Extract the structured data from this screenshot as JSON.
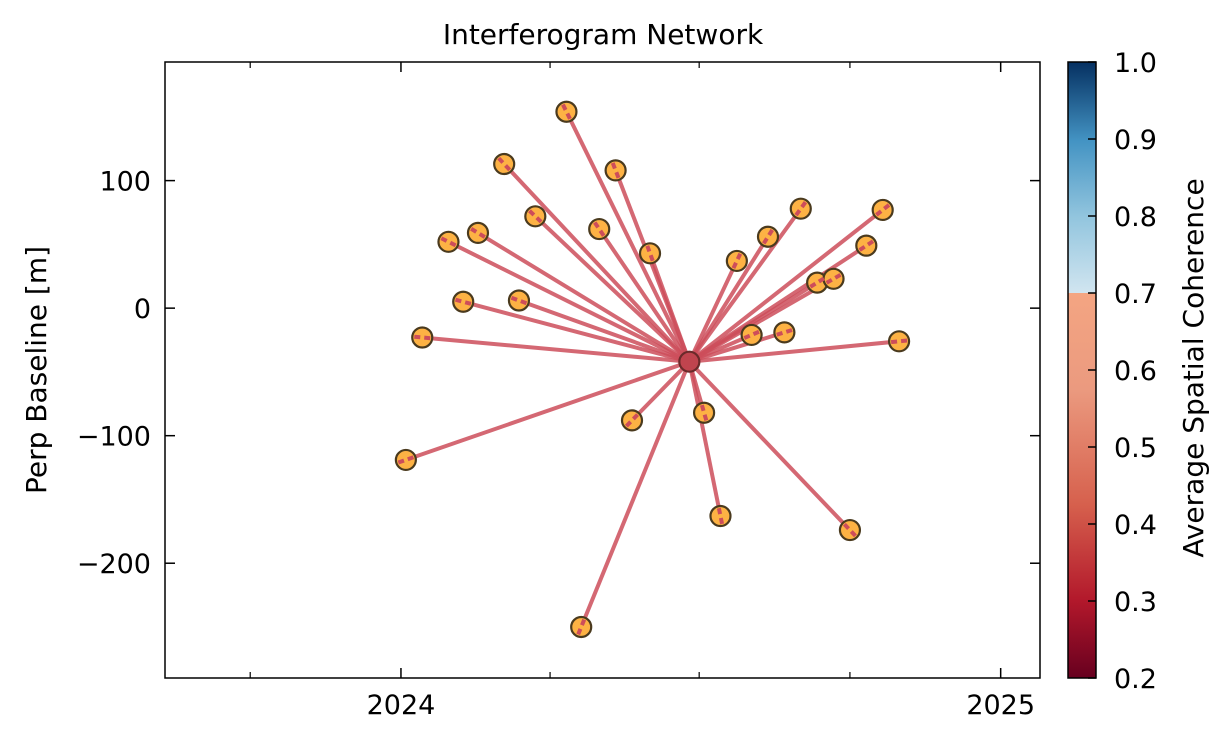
{
  "chart_data": {
    "type": "scatter",
    "title": "Interferogram Network",
    "xlabel": "",
    "ylabel": "Perp Baseline [m]",
    "x_axis": "date",
    "xlim": [
      "2023-08-10",
      "2025-01-25"
    ],
    "ylim": [
      -290,
      193
    ],
    "x_ticks": [
      {
        "date": "2024-01-01",
        "label": "2024"
      },
      {
        "date": "2025-01-01",
        "label": "2025"
      }
    ],
    "x_minor_ticks": [
      "2023-10-01",
      "2024-04-01",
      "2024-07-01",
      "2024-10-01"
    ],
    "y_ticks": [
      {
        "value": 100,
        "label": "100"
      },
      {
        "value": 0,
        "label": "0"
      },
      {
        "value": -100,
        "label": "−100"
      },
      {
        "value": -200,
        "label": "−200"
      }
    ],
    "reference": {
      "date": "2024-06-25",
      "baseline": -42
    },
    "acquisitions": [
      {
        "date": "2024-01-04",
        "baseline": -119
      },
      {
        "date": "2024-01-14",
        "baseline": -23
      },
      {
        "date": "2024-01-30",
        "baseline": 52
      },
      {
        "date": "2024-02-08",
        "baseline": 5
      },
      {
        "date": "2024-02-17",
        "baseline": 59
      },
      {
        "date": "2024-03-04",
        "baseline": 113
      },
      {
        "date": "2024-03-13",
        "baseline": 6
      },
      {
        "date": "2024-03-23",
        "baseline": 72
      },
      {
        "date": "2024-04-11",
        "baseline": 154
      },
      {
        "date": "2024-04-20",
        "baseline": -250
      },
      {
        "date": "2024-05-01",
        "baseline": 62
      },
      {
        "date": "2024-05-11",
        "baseline": 108
      },
      {
        "date": "2024-05-21",
        "baseline": -88
      },
      {
        "date": "2024-06-01",
        "baseline": 43
      },
      {
        "date": "2024-07-04",
        "baseline": -82
      },
      {
        "date": "2024-07-14",
        "baseline": -163
      },
      {
        "date": "2024-07-24",
        "baseline": 37
      },
      {
        "date": "2024-08-02",
        "baseline": -21
      },
      {
        "date": "2024-08-12",
        "baseline": 56
      },
      {
        "date": "2024-08-22",
        "baseline": -19
      },
      {
        "date": "2024-09-01",
        "baseline": 78
      },
      {
        "date": "2024-09-11",
        "baseline": 20
      },
      {
        "date": "2024-09-21",
        "baseline": 23
      },
      {
        "date": "2024-10-01",
        "baseline": -174
      },
      {
        "date": "2024-10-11",
        "baseline": 49
      },
      {
        "date": "2024-10-21",
        "baseline": 77
      },
      {
        "date": "2024-10-31",
        "baseline": -26
      }
    ],
    "interferogram_color": "#cd4d5a",
    "point_fill": "#fdb244",
    "point_edge": "#4a3a1e",
    "colorbar": {
      "label": "Average Spatial Coherence",
      "range": [
        0.2,
        1.0
      ],
      "colormap": "RdBu",
      "alpha_split": 0.7,
      "ticks": [
        "0.2",
        "0.3",
        "0.4",
        "0.5",
        "0.6",
        "0.7",
        "0.8",
        "0.9",
        "1.0"
      ]
    }
  }
}
